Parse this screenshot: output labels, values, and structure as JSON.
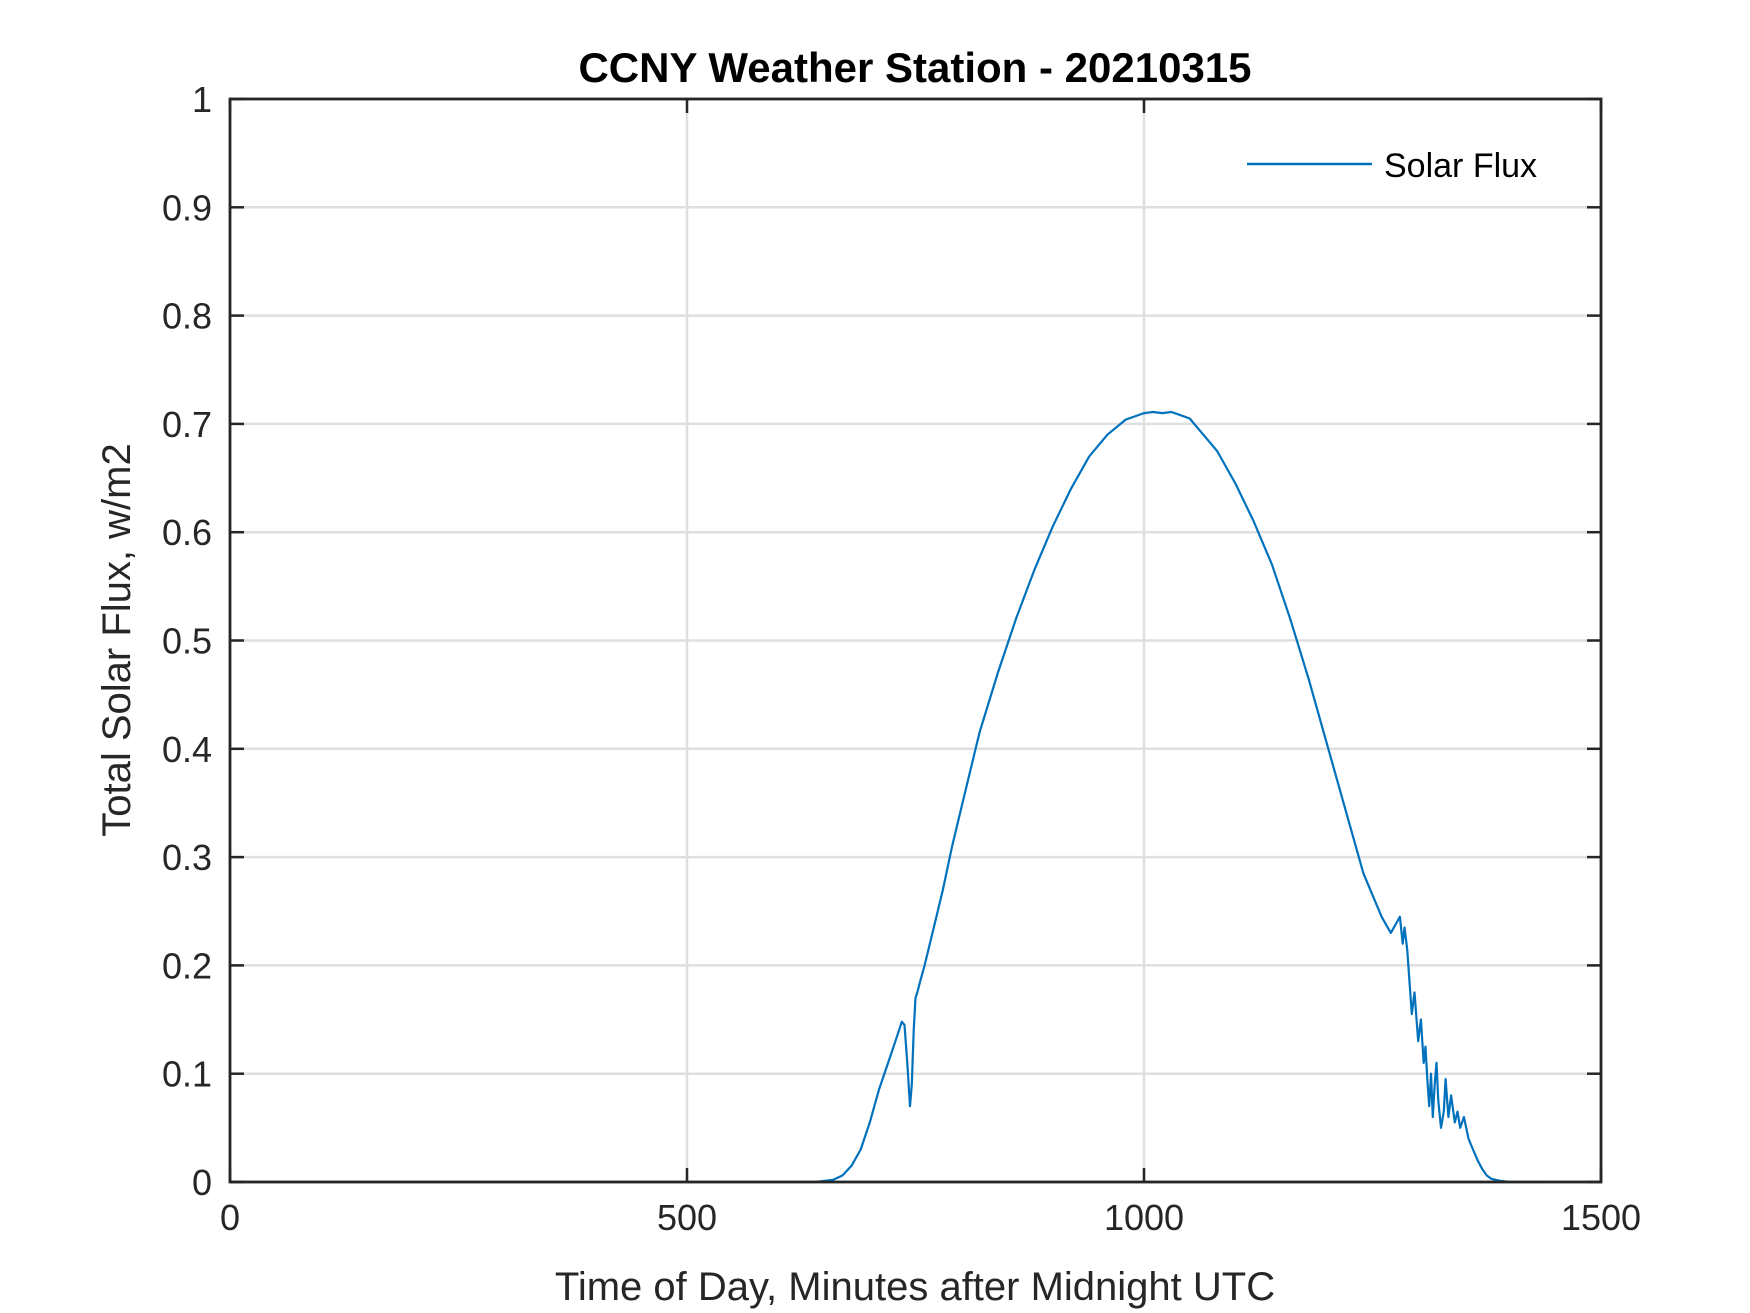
{
  "chart_data": {
    "type": "line",
    "title": "CCNY Weather Station - 20210315",
    "xlabel": "Time of Day, Minutes after Midnight UTC",
    "ylabel": "Total Solar Flux, w/m2",
    "xlim": [
      0,
      1500
    ],
    "ylim": [
      0,
      1
    ],
    "xticks": [
      0,
      500,
      1000,
      1500
    ],
    "xtick_labels": [
      "0",
      "500",
      "1000",
      "1500"
    ],
    "yticks": [
      0,
      0.1,
      0.2,
      0.3,
      0.4,
      0.5,
      0.6,
      0.7,
      0.8,
      0.9,
      1
    ],
    "ytick_labels": [
      "0",
      "0.1",
      "0.2",
      "0.3",
      "0.4",
      "0.5",
      "0.6",
      "0.7",
      "0.8",
      "0.9",
      "1"
    ],
    "grid": true,
    "legend": {
      "position": "top-right",
      "entries": [
        "Solar Flux"
      ]
    },
    "series": [
      {
        "name": "Solar Flux",
        "color": "#0072bd",
        "x": [
          0,
          640,
          660,
          670,
          680,
          690,
          700,
          710,
          720,
          730,
          735,
          738,
          741,
          744,
          746,
          748,
          750,
          752,
          755,
          760,
          770,
          780,
          790,
          800,
          820,
          840,
          860,
          880,
          900,
          920,
          940,
          960,
          980,
          1000,
          1010,
          1020,
          1030,
          1040,
          1050,
          1060,
          1080,
          1100,
          1120,
          1140,
          1160,
          1180,
          1200,
          1220,
          1240,
          1260,
          1270,
          1280,
          1283,
          1285,
          1288,
          1290,
          1293,
          1296,
          1300,
          1303,
          1306,
          1308,
          1310,
          1312,
          1314,
          1316,
          1318,
          1320,
          1322,
          1325,
          1328,
          1330,
          1333,
          1336,
          1340,
          1343,
          1346,
          1350,
          1355,
          1360,
          1365,
          1370,
          1375,
          1380,
          1390,
          1400,
          1410,
          1420,
          1440
        ],
        "y": [
          0,
          0,
          0.002,
          0.006,
          0.015,
          0.03,
          0.055,
          0.085,
          0.11,
          0.135,
          0.148,
          0.145,
          0.11,
          0.07,
          0.09,
          0.14,
          0.17,
          0.175,
          0.185,
          0.2,
          0.235,
          0.27,
          0.31,
          0.345,
          0.415,
          0.47,
          0.52,
          0.565,
          0.605,
          0.64,
          0.67,
          0.69,
          0.704,
          0.71,
          0.711,
          0.71,
          0.711,
          0.708,
          0.705,
          0.695,
          0.675,
          0.645,
          0.61,
          0.57,
          0.52,
          0.465,
          0.405,
          0.345,
          0.285,
          0.245,
          0.23,
          0.245,
          0.22,
          0.235,
          0.215,
          0.19,
          0.155,
          0.175,
          0.13,
          0.15,
          0.11,
          0.125,
          0.095,
          0.07,
          0.1,
          0.06,
          0.09,
          0.11,
          0.075,
          0.05,
          0.065,
          0.095,
          0.06,
          0.08,
          0.055,
          0.065,
          0.05,
          0.06,
          0.04,
          0.03,
          0.02,
          0.012,
          0.006,
          0.003,
          0.001,
          0,
          0,
          0,
          0
        ]
      }
    ]
  }
}
